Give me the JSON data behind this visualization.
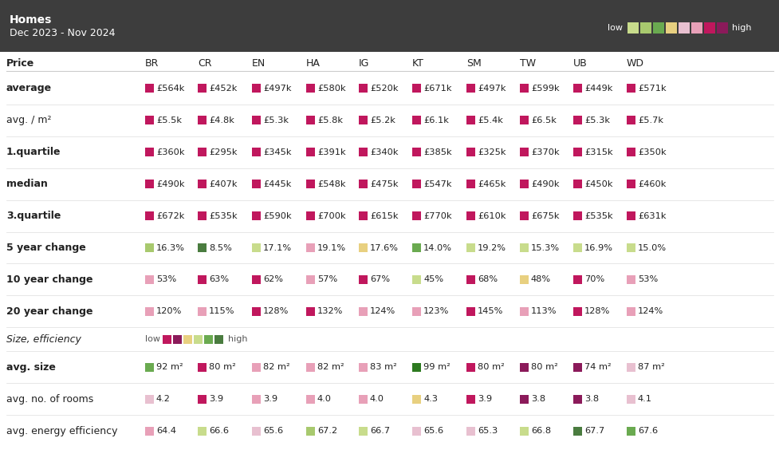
{
  "title": "Homes",
  "subtitle": "Dec 2023 - Nov 2024",
  "header_bg": "#3d3d3d",
  "table_bg": "#ffffff",
  "columns": [
    "Price",
    "BR",
    "CR",
    "EN",
    "HA",
    "IG",
    "KT",
    "SM",
    "TW",
    "UB",
    "WD"
  ],
  "rows": [
    {
      "label": "average",
      "bold": true,
      "values": [
        "£564k",
        "£452k",
        "£497k",
        "£580k",
        "£520k",
        "£671k",
        "£497k",
        "£599k",
        "£449k",
        "£571k"
      ],
      "colors": [
        "#c0175d",
        "#c0175d",
        "#c0175d",
        "#c0175d",
        "#c0175d",
        "#c0175d",
        "#c0175d",
        "#c0175d",
        "#c0175d",
        "#c0175d"
      ]
    },
    {
      "label": "avg. / m²",
      "bold": false,
      "values": [
        "£5.5k",
        "£4.8k",
        "£5.3k",
        "£5.8k",
        "£5.2k",
        "£6.1k",
        "£5.4k",
        "£6.5k",
        "£5.3k",
        "£5.7k"
      ],
      "colors": [
        "#c0175d",
        "#c0175d",
        "#c0175d",
        "#c0175d",
        "#c0175d",
        "#c0175d",
        "#c0175d",
        "#c0175d",
        "#c0175d",
        "#c0175d"
      ]
    },
    {
      "label": "1.quartile",
      "bold": true,
      "values": [
        "£360k",
        "£295k",
        "£345k",
        "£391k",
        "£340k",
        "£385k",
        "£325k",
        "£370k",
        "£315k",
        "£350k"
      ],
      "colors": [
        "#c0175d",
        "#c0175d",
        "#c0175d",
        "#c0175d",
        "#c0175d",
        "#c0175d",
        "#c0175d",
        "#c0175d",
        "#c0175d",
        "#c0175d"
      ]
    },
    {
      "label": "median",
      "bold": true,
      "values": [
        "£490k",
        "£407k",
        "£445k",
        "£548k",
        "£475k",
        "£547k",
        "£465k",
        "£490k",
        "£450k",
        "£460k"
      ],
      "colors": [
        "#c0175d",
        "#c0175d",
        "#c0175d",
        "#c0175d",
        "#c0175d",
        "#c0175d",
        "#c0175d",
        "#c0175d",
        "#c0175d",
        "#c0175d"
      ]
    },
    {
      "label": "3.quartile",
      "bold": true,
      "values": [
        "£672k",
        "£535k",
        "£590k",
        "£700k",
        "£615k",
        "£770k",
        "£610k",
        "£675k",
        "£535k",
        "£631k"
      ],
      "colors": [
        "#c0175d",
        "#c0175d",
        "#c0175d",
        "#c0175d",
        "#c0175d",
        "#c0175d",
        "#c0175d",
        "#c0175d",
        "#c0175d",
        "#c0175d"
      ]
    },
    {
      "label": "5 year change",
      "bold": true,
      "values": [
        "16.3%",
        "8.5%",
        "17.1%",
        "19.1%",
        "17.6%",
        "14.0%",
        "19.2%",
        "15.3%",
        "16.9%",
        "15.0%"
      ],
      "colors": [
        "#a8c96e",
        "#4a7c3f",
        "#c8dc8c",
        "#e8a0b8",
        "#e8d080",
        "#6aaa50",
        "#c8dc8c",
        "#c8dc8c",
        "#c8dc8c",
        "#c8dc8c"
      ]
    },
    {
      "label": "10 year change",
      "bold": true,
      "values": [
        "53%",
        "63%",
        "62%",
        "57%",
        "67%",
        "45%",
        "68%",
        "48%",
        "70%",
        "53%"
      ],
      "colors": [
        "#e8a0b8",
        "#c0175d",
        "#c0175d",
        "#e8a0b8",
        "#c0175d",
        "#c8dc8c",
        "#c0175d",
        "#e8d080",
        "#c0175d",
        "#e8a0b8"
      ]
    },
    {
      "label": "20 year change",
      "bold": true,
      "values": [
        "120%",
        "115%",
        "128%",
        "132%",
        "124%",
        "123%",
        "145%",
        "113%",
        "128%",
        "124%"
      ],
      "colors": [
        "#e8a0b8",
        "#e8a0b8",
        "#c0175d",
        "#c0175d",
        "#e8a0b8",
        "#e8a0b8",
        "#c0175d",
        "#e8a0b8",
        "#c0175d",
        "#e8a0b8"
      ]
    },
    {
      "label": "Size, efficiency",
      "bold": false,
      "italic": true,
      "is_legend": true,
      "values": [],
      "colors": []
    },
    {
      "label": "avg. size",
      "bold": true,
      "values": [
        "92 m²",
        "80 m²",
        "82 m²",
        "82 m²",
        "83 m²",
        "99 m²",
        "80 m²",
        "80 m²",
        "74 m²",
        "87 m²"
      ],
      "colors": [
        "#6aaa50",
        "#c0175d",
        "#e8a0b8",
        "#e8a0b8",
        "#e8a0b8",
        "#2d7a20",
        "#c0175d",
        "#8b1a5a",
        "#8b1a5a",
        "#e8c0d0"
      ]
    },
    {
      "label": "avg. no. of rooms",
      "bold": false,
      "values": [
        "4.2",
        "3.9",
        "3.9",
        "4.0",
        "4.0",
        "4.3",
        "3.9",
        "3.8",
        "3.8",
        "4.1"
      ],
      "colors": [
        "#e8c0d0",
        "#c0175d",
        "#e8a0b8",
        "#e8a0b8",
        "#e8a0b8",
        "#e8d080",
        "#c0175d",
        "#8b1a5a",
        "#8b1a5a",
        "#e8c0d0"
      ]
    },
    {
      "label": "avg. energy efficiency",
      "bold": false,
      "values": [
        "64.4",
        "66.6",
        "65.6",
        "67.2",
        "66.7",
        "65.6",
        "65.3",
        "66.8",
        "67.7",
        "67.6"
      ],
      "colors": [
        "#e8a0b8",
        "#c8dc8c",
        "#e8c0d0",
        "#a8c96e",
        "#c8dc8c",
        "#e8c0d0",
        "#e8c0d0",
        "#c8dc8c",
        "#4a7c3f",
        "#6aaa50"
      ]
    }
  ],
  "legend_colors_price": [
    "#c8dc8c",
    "#a8c96e",
    "#6aaa50",
    "#e8d080",
    "#e8c0d0",
    "#e8a0b8",
    "#c0175d",
    "#8b1a5a"
  ],
  "legend_colors_size": [
    "#c0175d",
    "#8b1a5a",
    "#e8d080",
    "#c8dc8c",
    "#6aaa50",
    "#4a7c3f"
  ]
}
